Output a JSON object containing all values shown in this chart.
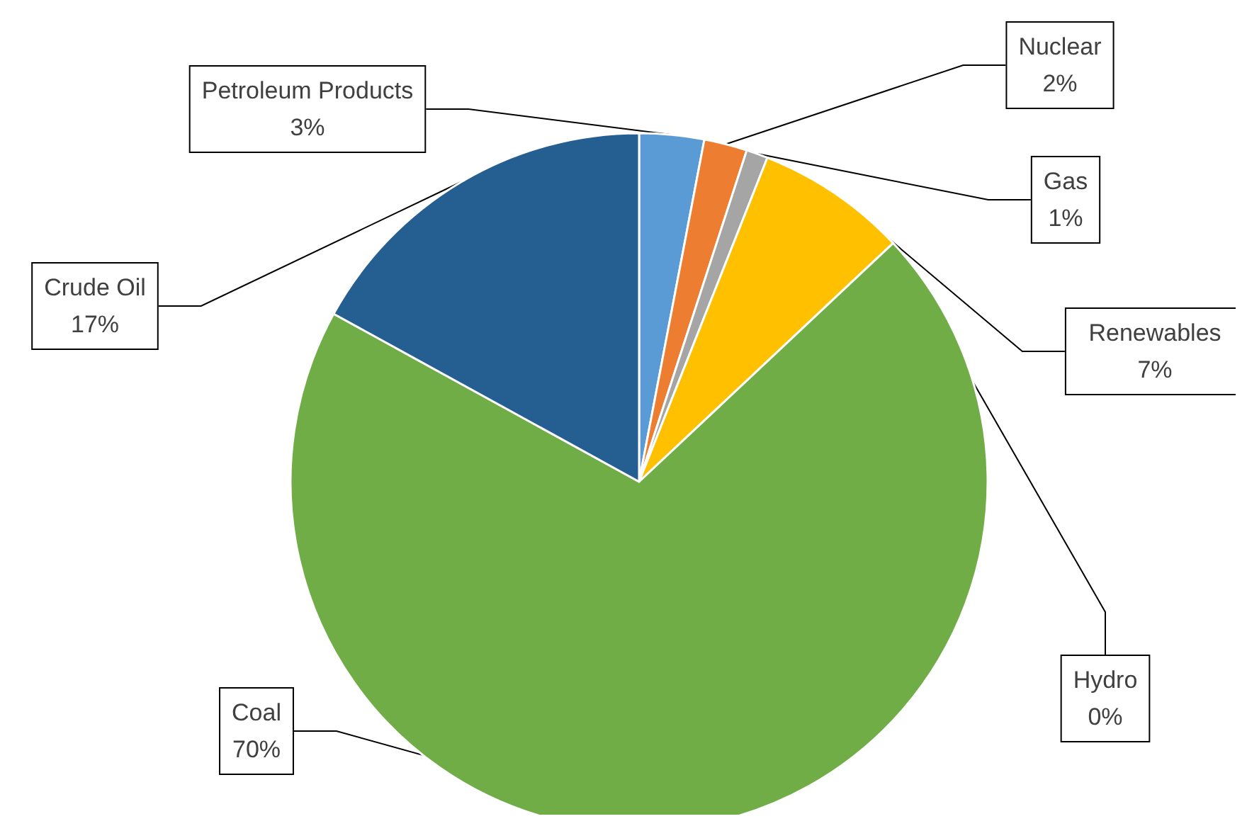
{
  "chart_data": {
    "type": "pie",
    "categories": [
      "Petroleum Products",
      "Nuclear",
      "Gas",
      "Renewables",
      "Hydro",
      "Coal",
      "Crude Oil"
    ],
    "values": [
      3,
      2,
      1,
      7,
      0,
      70,
      17
    ],
    "value_labels": [
      "3%",
      "2%",
      "1%",
      "7%",
      "0%",
      "70%",
      "17%"
    ],
    "colors": [
      "#5b9bd5",
      "#ed7d31",
      "#a5a5a5",
      "#ffc000",
      "#4472c4",
      "#70ad47",
      "#255e91"
    ],
    "legend": false
  }
}
